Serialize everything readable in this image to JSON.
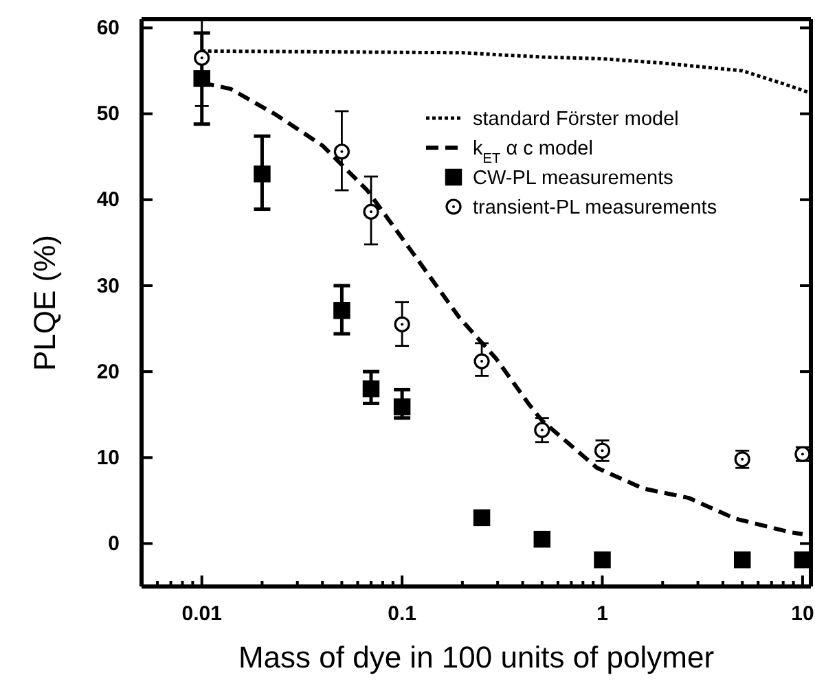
{
  "chart_data": {
    "type": "scatter",
    "xlabel": "Mass of dye in 100 units of polymer",
    "ylabel": "PLQE (%)",
    "log": "x",
    "xlim": [
      0.005,
      11
    ],
    "xticks": [
      {
        "value": 0.005,
        "label": null
      },
      {
        "value": 0.006,
        "label": null
      },
      {
        "value": 0.007,
        "label": null
      },
      {
        "value": 0.008,
        "label": null
      },
      {
        "value": 0.009,
        "label": null
      },
      0.01,
      {
        "value": 0.02,
        "label": null
      },
      {
        "value": 0.03,
        "label": null
      },
      {
        "value": 0.04,
        "label": null
      },
      {
        "value": 0.05,
        "label": null
      },
      {
        "value": 0.06,
        "label": null
      },
      {
        "value": 0.07,
        "label": null
      },
      {
        "value": 0.08,
        "label": null
      },
      {
        "value": 0.09,
        "label": null
      },
      0.1,
      {
        "value": 0.2,
        "label": null
      },
      {
        "value": 0.3,
        "label": null
      },
      {
        "value": 0.4,
        "label": null
      },
      {
        "value": 0.5,
        "label": null
      },
      {
        "value": 0.6,
        "label": null
      },
      {
        "value": 0.7,
        "label": null
      },
      {
        "value": 0.8,
        "label": null
      },
      {
        "value": 0.9,
        "label": null
      },
      1,
      {
        "value": 2,
        "label": null
      },
      {
        "value": 3,
        "label": null
      },
      {
        "value": 4,
        "label": null
      },
      {
        "value": 5,
        "label": null
      },
      {
        "value": 6,
        "label": null
      },
      {
        "value": 7,
        "label": null
      },
      {
        "value": 8,
        "label": null
      },
      {
        "value": 9,
        "label": null
      },
      10
    ],
    "ylim": [
      -5,
      61
    ],
    "yticks": [
      0,
      10,
      20,
      30,
      40,
      50,
      60
    ],
    "grid": false,
    "legend": "top right",
    "series": [
      {
        "name": "standard Förster model",
        "type": "line",
        "line_style": "dotted",
        "color": "#000000",
        "x": [
          0.01,
          0.2,
          0.5,
          1,
          2,
          5,
          8,
          11
        ],
        "values": [
          57.3,
          57.1,
          56.6,
          56.4,
          55.9,
          55,
          53.5,
          52.4
        ]
      },
      {
        "name": "k$_{ET}$ α c model",
        "type": "line",
        "line_style": "dashed",
        "color": "#000000",
        "x": [
          0.01,
          0.0139,
          0.0234,
          0.04,
          0.067,
          0.114,
          0.193,
          0.295,
          0.43,
          0.5,
          0.94,
          1.6,
          2.7,
          4.6,
          8.7,
          10
        ],
        "values": [
          53.6,
          52.9,
          49.9,
          46.3,
          41.1,
          33.7,
          26.3,
          21.5,
          16.2,
          14.3,
          8.8,
          6.4,
          5.3,
          2.9,
          1.3,
          1.1
        ]
      },
      {
        "name": "CW-PL measurements",
        "marker": "square",
        "color": "#000000",
        "x": [
          0.01,
          0.02,
          0.05,
          0.07,
          0.1,
          0.25,
          0.5,
          1,
          5,
          10
        ],
        "values": [
          54.1,
          43,
          27.1,
          18,
          15.9,
          3,
          0.5,
          -1.9,
          -1.9,
          -1.9
        ],
        "errors": [
          [
            48.8,
            59.4
          ],
          [
            38.9,
            47.4
          ],
          [
            24.4,
            30
          ],
          [
            16.3,
            20
          ],
          [
            14.6,
            17.9
          ],
          null,
          null,
          null,
          null,
          null
        ]
      },
      {
        "name": "transient-PL measurements",
        "marker": "circle",
        "color": "#000000",
        "x": [
          0.01,
          0.05,
          0.07,
          0.1,
          0.25,
          0.5,
          1,
          5,
          10
        ],
        "values": [
          56.5,
          45.6,
          38.6,
          25.5,
          21.2,
          13.2,
          10.8,
          9.8,
          10.4
        ],
        "errors": [
          [
            50.9,
            61
          ],
          [
            41.1,
            50.3
          ],
          [
            34.8,
            42.7
          ],
          [
            23,
            28.1
          ],
          [
            19.5,
            23.3
          ],
          [
            11.8,
            14.6
          ],
          [
            9.6,
            12
          ],
          [
            8.8,
            10.8
          ],
          [
            9.6,
            11.2
          ]
        ]
      }
    ]
  }
}
